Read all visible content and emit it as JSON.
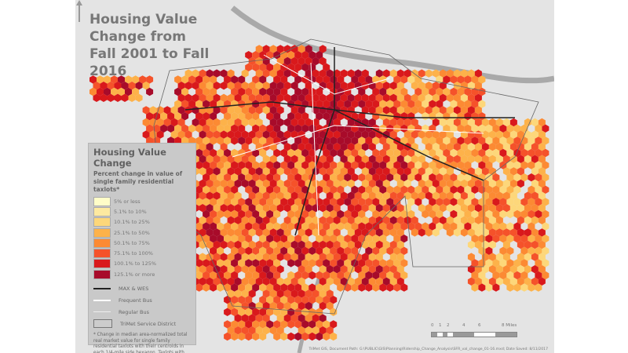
{
  "title": "Housing Value Change from Fall 2001 to Fall 2016",
  "legend": {
    "title": "Housing Value Change",
    "subtitle": "Percent change in value of single family residential taxlots*",
    "classes": [
      {
        "label": "5% or less",
        "color": "#fffdc8"
      },
      {
        "label": "5.1% to 10%",
        "color": "#fde9a0"
      },
      {
        "label": "10.1% to 25%",
        "color": "#fdd77a"
      },
      {
        "label": "25.1% to 50%",
        "color": "#fdb24a"
      },
      {
        "label": "50.1% to 75%",
        "color": "#fc8a33"
      },
      {
        "label": "75.1% to 100%",
        "color": "#f5522a"
      },
      {
        "label": "100.1% to 125%",
        "color": "#d9191c"
      },
      {
        "label": "125.1% or more",
        "color": "#a80b2a"
      }
    ],
    "lines": [
      {
        "label": "MAX & WES",
        "color": "#222222"
      },
      {
        "label": "Frequent Bus",
        "color": "#ffffff"
      },
      {
        "label": "Regular Bus",
        "color": "#eeeeee"
      },
      {
        "label": "TriMet Service District",
        "color": "#777777"
      }
    ],
    "note": "* Change in median area-normalized total real market value for single family residential taxlots with their centroids in each 1/4-mile side hexagon. Taxlots with zero or null values were removed. Data credit: Metro RLIS."
  },
  "scale_bar": {
    "ticks": [
      "0",
      "1",
      "2",
      "4",
      "6",
      "8 Miles"
    ]
  },
  "footer": "TriMet GIS, Document Path: G:\\PUBLIC\\GIS\\Planning\\Ridership_Change_Analysis\\SFR_val_change_01-16.mxd; Date Saved: 8/11/2017",
  "colors": {
    "background": "#e4e4e4",
    "river": "#a9a9a9"
  }
}
